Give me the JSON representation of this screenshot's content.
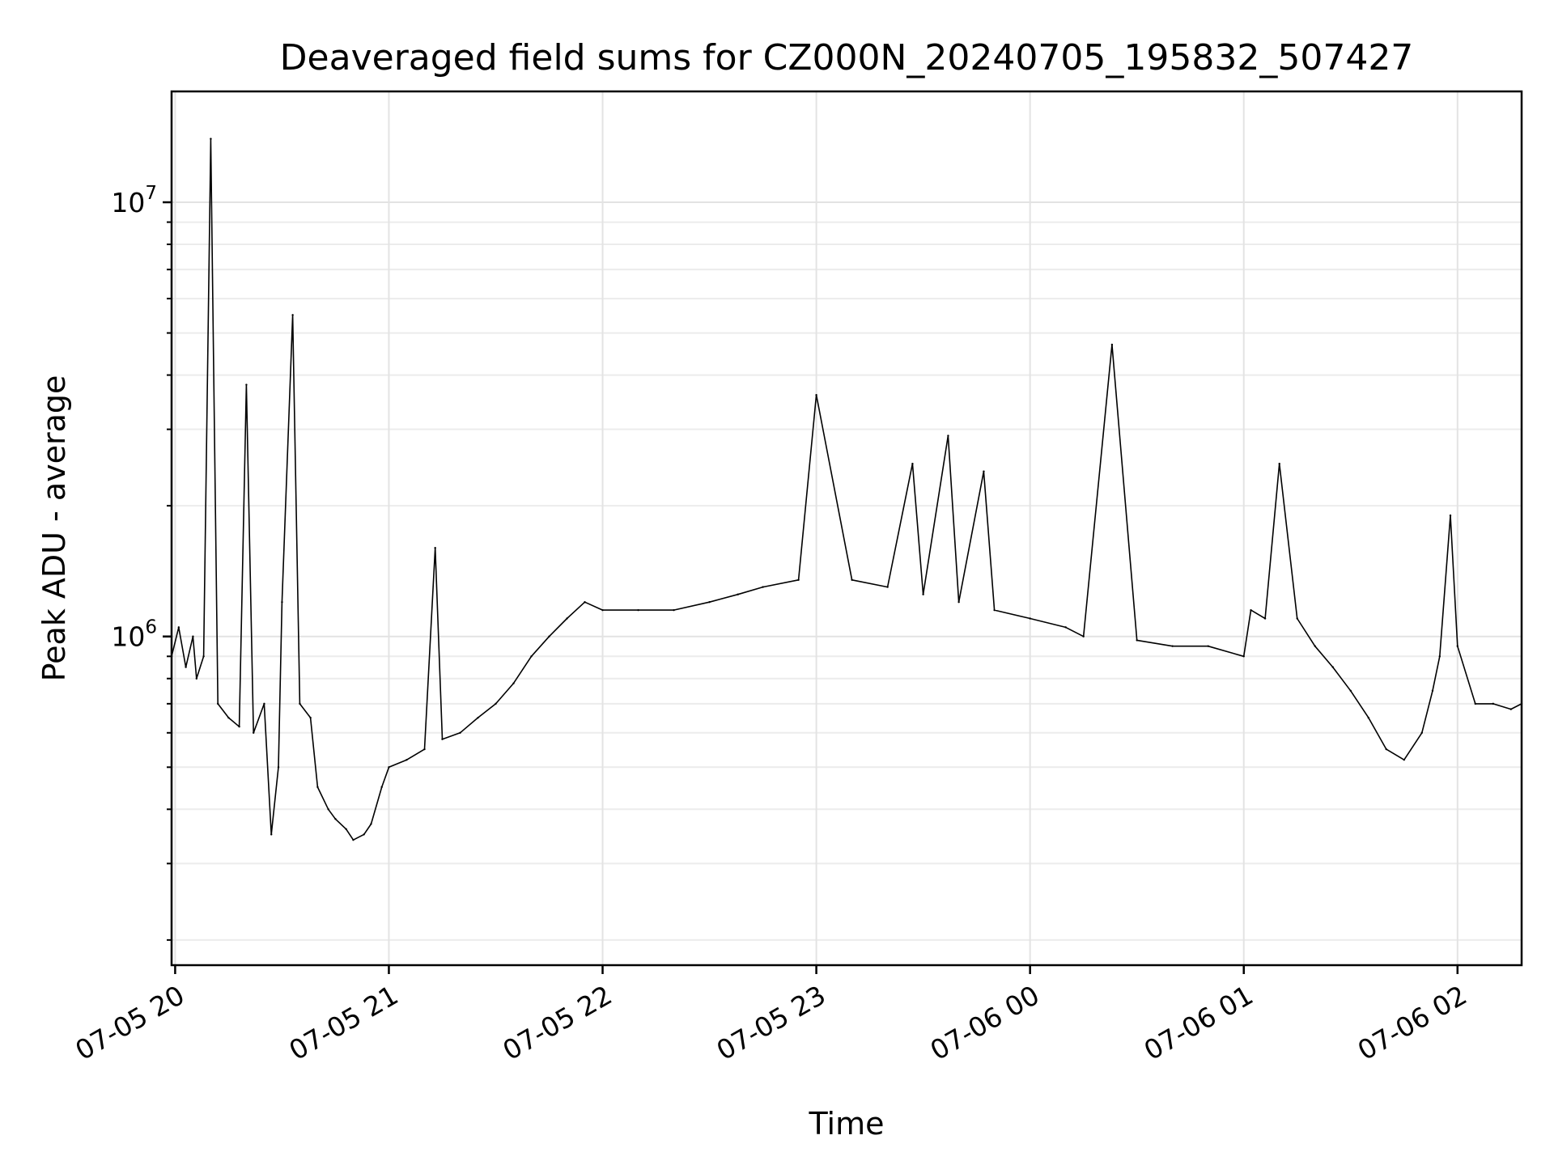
{
  "chart_data": {
    "type": "line",
    "title": "Deaveraged field sums for CZ000N_20240705_195832_507427",
    "xlabel": "Time",
    "ylabel": "Peak ADU - average",
    "yscale": "log",
    "grid": true,
    "x_range": [
      "2024-07-05 19:59",
      "2024-07-06 02:18"
    ],
    "ylim": [
      175000,
      18000000
    ],
    "x_ticks": [
      {
        "time": "2024-07-05 20:00",
        "label": "07-05 20"
      },
      {
        "time": "2024-07-05 21:00",
        "label": "07-05 21"
      },
      {
        "time": "2024-07-05 22:00",
        "label": "07-05 22"
      },
      {
        "time": "2024-07-05 23:00",
        "label": "07-05 23"
      },
      {
        "time": "2024-07-06 00:00",
        "label": "07-06 00"
      },
      {
        "time": "2024-07-06 01:00",
        "label": "07-06 01"
      },
      {
        "time": "2024-07-06 02:00",
        "label": "07-06 02"
      }
    ],
    "y_ticks": [
      {
        "value": 1000000,
        "base": "10",
        "exp": "6"
      },
      {
        "value": 10000000,
        "base": "10",
        "exp": "7"
      }
    ],
    "series": [
      {
        "color": "#000000",
        "x": [
          "2024-07-05 19:59",
          "2024-07-05 20:01",
          "2024-07-05 20:03",
          "2024-07-05 20:05",
          "2024-07-05 20:06",
          "2024-07-05 20:08",
          "2024-07-05 20:10",
          "2024-07-05 20:12",
          "2024-07-05 20:15",
          "2024-07-05 20:18",
          "2024-07-05 20:20",
          "2024-07-05 20:22",
          "2024-07-05 20:25",
          "2024-07-05 20:27",
          "2024-07-05 20:29",
          "2024-07-05 20:30",
          "2024-07-05 20:33",
          "2024-07-05 20:35",
          "2024-07-05 20:38",
          "2024-07-05 20:40",
          "2024-07-05 20:43",
          "2024-07-05 20:45",
          "2024-07-05 20:48",
          "2024-07-05 20:50",
          "2024-07-05 20:53",
          "2024-07-05 20:55",
          "2024-07-05 20:58",
          "2024-07-05 21:00",
          "2024-07-05 21:05",
          "2024-07-05 21:10",
          "2024-07-05 21:13",
          "2024-07-05 21:15",
          "2024-07-05 21:20",
          "2024-07-05 21:25",
          "2024-07-05 21:30",
          "2024-07-05 21:35",
          "2024-07-05 21:40",
          "2024-07-05 21:45",
          "2024-07-05 21:50",
          "2024-07-05 21:55",
          "2024-07-05 22:00",
          "2024-07-05 22:10",
          "2024-07-05 22:20",
          "2024-07-05 22:30",
          "2024-07-05 22:38",
          "2024-07-05 22:45",
          "2024-07-05 22:55",
          "2024-07-05 23:00",
          "2024-07-05 23:10",
          "2024-07-05 23:20",
          "2024-07-05 23:27",
          "2024-07-05 23:30",
          "2024-07-05 23:37",
          "2024-07-05 23:40",
          "2024-07-05 23:47",
          "2024-07-05 23:50",
          "2024-07-06 00:00",
          "2024-07-06 00:10",
          "2024-07-06 00:15",
          "2024-07-06 00:23",
          "2024-07-06 00:30",
          "2024-07-06 00:40",
          "2024-07-06 00:50",
          "2024-07-06 01:00",
          "2024-07-06 01:02",
          "2024-07-06 01:06",
          "2024-07-06 01:10",
          "2024-07-06 01:15",
          "2024-07-06 01:20",
          "2024-07-06 01:25",
          "2024-07-06 01:30",
          "2024-07-06 01:35",
          "2024-07-06 01:40",
          "2024-07-06 01:45",
          "2024-07-06 01:50",
          "2024-07-06 01:53",
          "2024-07-06 01:55",
          "2024-07-06 01:58",
          "2024-07-06 02:00",
          "2024-07-06 02:05",
          "2024-07-06 02:10",
          "2024-07-06 02:15",
          "2024-07-06 02:18"
        ],
        "y": [
          900000,
          1050000,
          850000,
          1000000,
          800000,
          900000,
          14000000,
          700000,
          650000,
          620000,
          3800000,
          600000,
          700000,
          350000,
          500000,
          1200000,
          5500000,
          700000,
          650000,
          450000,
          400000,
          380000,
          360000,
          340000,
          350000,
          370000,
          450000,
          500000,
          520000,
          550000,
          1600000,
          580000,
          600000,
          650000,
          700000,
          780000,
          900000,
          1000000,
          1100000,
          1200000,
          1150000,
          1150000,
          1150000,
          1200000,
          1250000,
          1300000,
          1350000,
          3600000,
          1350000,
          1300000,
          2500000,
          1250000,
          2900000,
          1200000,
          2400000,
          1150000,
          1100000,
          1050000,
          1000000,
          4700000,
          980000,
          950000,
          950000,
          900000,
          1150000,
          1100000,
          2500000,
          1100000,
          950000,
          850000,
          750000,
          650000,
          550000,
          520000,
          600000,
          750000,
          900000,
          1900000,
          950000,
          700000,
          700000,
          680000,
          700000
        ]
      }
    ]
  }
}
